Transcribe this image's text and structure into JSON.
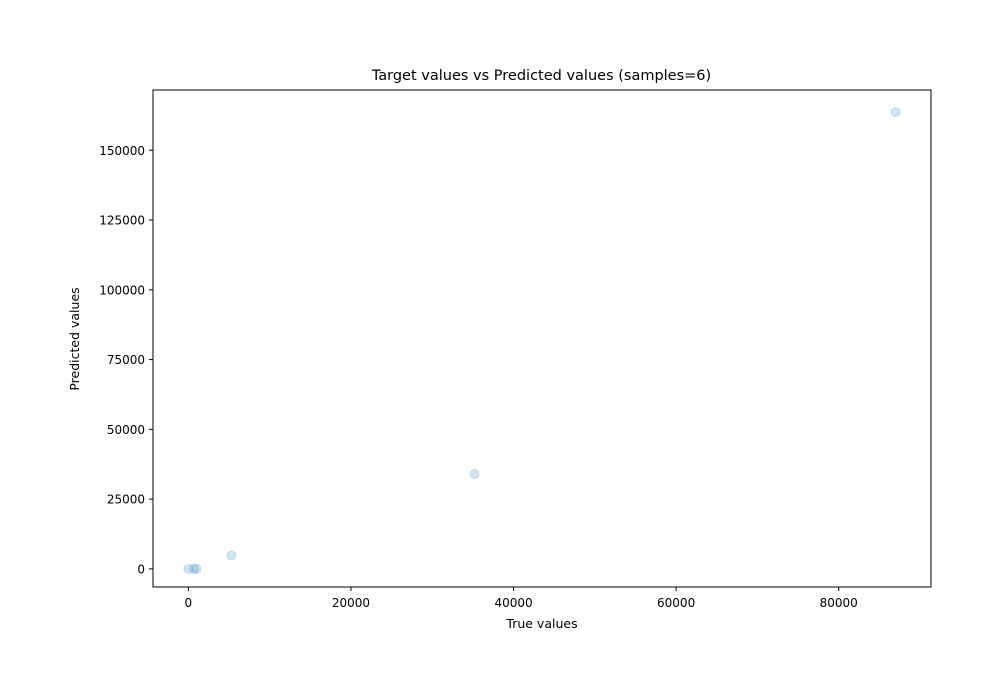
{
  "chart_data": {
    "type": "scatter",
    "title": "Target values vs Predicted values (samples=6)",
    "xlabel": "True values",
    "ylabel": "Predicted values",
    "xlim": [
      -4350,
      91350
    ],
    "ylim": [
      -6500,
      171600
    ],
    "xticks": [
      0,
      20000,
      40000,
      60000,
      80000
    ],
    "xtick_labels": [
      "0",
      "20000",
      "40000",
      "60000",
      "80000"
    ],
    "yticks": [
      0,
      25000,
      50000,
      75000,
      100000,
      125000,
      150000
    ],
    "ytick_labels": [
      "0",
      "25000",
      "50000",
      "75000",
      "100000",
      "125000",
      "150000"
    ],
    "grid": false,
    "marker_color": "#1f77b4",
    "marker_opacity": 0.2,
    "x": [
      0,
      700,
      1000,
      5300,
      35200,
      87000
    ],
    "y": [
      0,
      0,
      0,
      4800,
      34000,
      163700
    ]
  }
}
